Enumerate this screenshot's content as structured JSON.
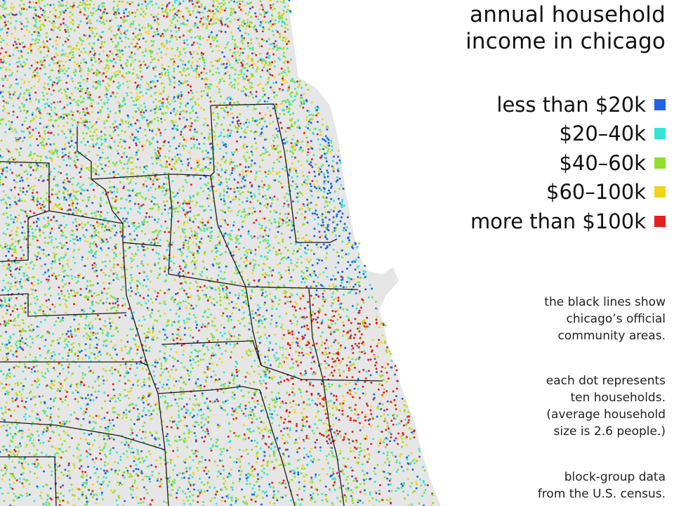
{
  "title": {
    "line1": "annual household",
    "line2": "income in chicago"
  },
  "legend": {
    "items": [
      {
        "label": "less than $20k",
        "color": "#1f66e5"
      },
      {
        "label": "$20–40k",
        "color": "#33e5d6"
      },
      {
        "label": "$40–60k",
        "color": "#8fe02c"
      },
      {
        "label": "$60–100k",
        "color": "#f2d21a"
      },
      {
        "label": "more than $100k",
        "color": "#e81f1f"
      }
    ]
  },
  "notes": {
    "lines_note": [
      "the black lines show",
      "chicago’s official",
      "community areas."
    ],
    "dots_note": [
      "each dot represents",
      "ten households.",
      "(average household",
      "size is 2.6 people.)"
    ],
    "source_note": [
      "block-group data",
      "from the U.S. census."
    ]
  },
  "map": {
    "land_color": "#e6e6e6",
    "water_color": "#ffffff",
    "boundary_color": "#1a1a1a"
  }
}
